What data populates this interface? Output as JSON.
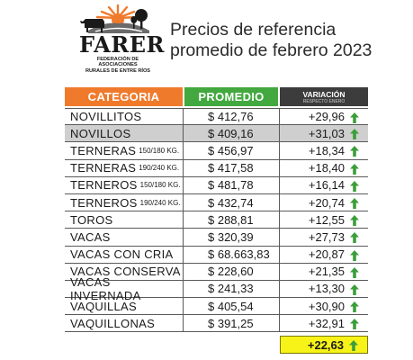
{
  "logo": {
    "name": "FARER",
    "subtitle_line1": "FEDERACIÓN DE ASOCIACIONES",
    "subtitle_line2": "RURALES DE ENTRE RÍOS"
  },
  "title": {
    "line1": "Precios de referencia",
    "line2": "promedio de febrero 2023"
  },
  "table": {
    "headers": {
      "category": "CATEGORIA",
      "average": "PROMEDIO",
      "variation": "VARIACIÓN",
      "variation_sub": "RESPECTO ENERO"
    },
    "rows": [
      {
        "name": "NOVILLITOS",
        "detail": "",
        "avg": "$ 412,76",
        "var": "+29,96"
      },
      {
        "name": "NOVILLOS",
        "detail": "",
        "avg": "$ 409,16",
        "var": "+31,03"
      },
      {
        "name": "TERNERAS",
        "detail": "150/180 KG.",
        "avg": "$ 456,97",
        "var": "+18,34"
      },
      {
        "name": "TERNERAS",
        "detail": "190/240 KG.",
        "avg": "$ 417,58",
        "var": "+18,40"
      },
      {
        "name": "TERNEROS",
        "detail": "150/180 KG.",
        "avg": "$ 481,78",
        "var": "+16,14"
      },
      {
        "name": "TERNEROS",
        "detail": "190/240 KG.",
        "avg": "$ 432,74",
        "var": "+20,74"
      },
      {
        "name": "TOROS",
        "detail": "",
        "avg": "$ 288,81",
        "var": "+12,55"
      },
      {
        "name": "VACAS",
        "detail": "",
        "avg": "$ 320,39",
        "var": "+27,73"
      },
      {
        "name": "VACAS CON CRIA",
        "detail": "",
        "avg": "$ 68.663,83",
        "var": "+20,87"
      },
      {
        "name": "VACAS CONSERVA",
        "detail": "",
        "avg": "$ 228,60",
        "var": "+21,35"
      },
      {
        "name": "VACAS INVERNADA",
        "detail": "",
        "avg": "$ 241,33",
        "var": "+13,30"
      },
      {
        "name": "VAQUILLAS",
        "detail": "",
        "avg": "$ 405,54",
        "var": "+30,90"
      },
      {
        "name": "VAQUILLONAS",
        "detail": "",
        "avg": "$ 391,25",
        "var": "+32,91"
      }
    ],
    "total": "+22,63"
  },
  "colors": {
    "category_header": "#f07a2c",
    "average_header": "#42a83f",
    "variation_header": "#3c3c3c",
    "arrow_up": "#3c9e3a",
    "total_highlight": "#f7f218",
    "row_highlight": "#cfcfcf"
  },
  "icons": {
    "trend": "arrow-up-icon",
    "logo": "cow-landscape-icon"
  }
}
